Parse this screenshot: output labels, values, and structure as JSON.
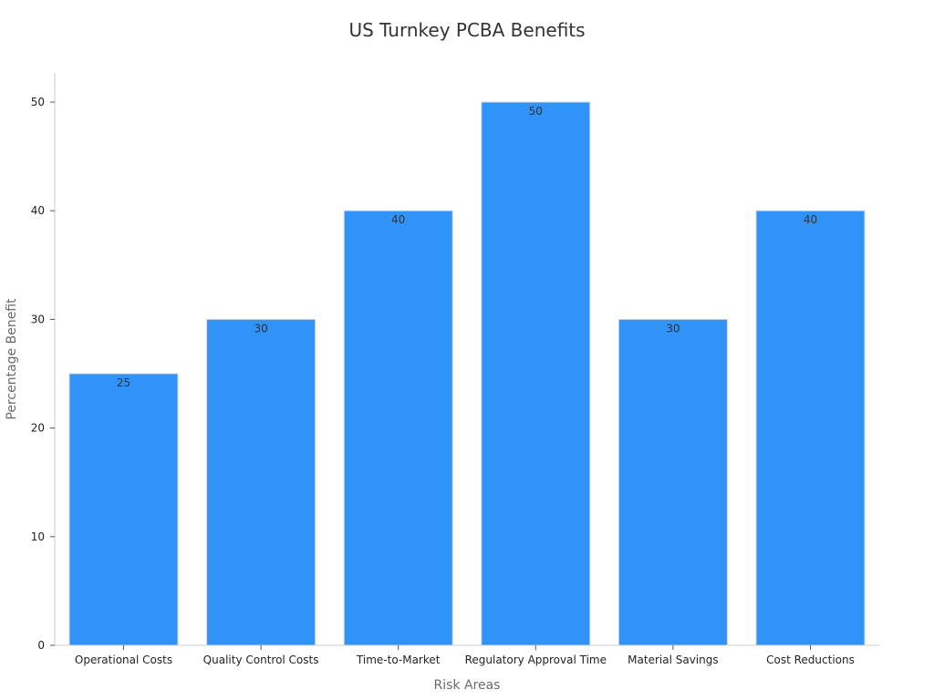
{
  "chart_data": {
    "type": "bar",
    "title": "US Turnkey PCBA Benefits",
    "xlabel": "Risk Areas",
    "ylabel": "Percentage Benefit",
    "categories": [
      "Operational Costs",
      "Quality Control Costs",
      "Time-to-Market",
      "Regulatory Approval Time",
      "Material Savings",
      "Cost Reductions"
    ],
    "values": [
      25,
      30,
      40,
      50,
      30,
      40
    ],
    "data_labels": [
      "25",
      "30",
      "40",
      "50",
      "30",
      "40"
    ],
    "ylim": [
      0,
      52
    ],
    "yticks": [
      0,
      10,
      20,
      30,
      40,
      50
    ],
    "grid": false,
    "legend": "none",
    "colors": {
      "bar": "#2f93f8"
    }
  }
}
